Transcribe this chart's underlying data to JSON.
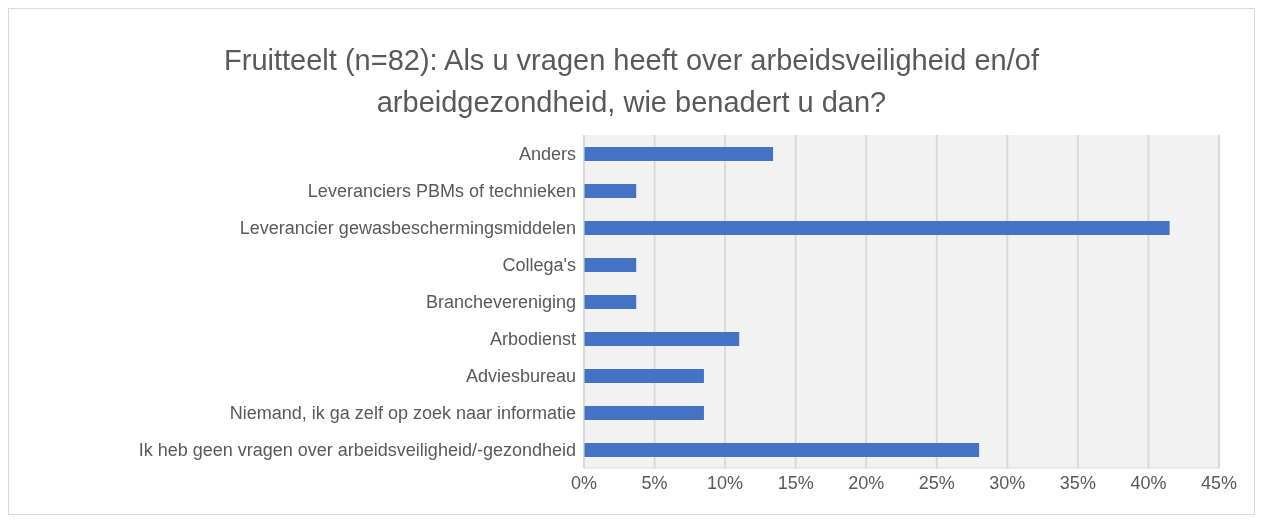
{
  "chart_data": {
    "type": "bar",
    "orientation": "horizontal",
    "title": "Fruitteelt (n=82): Als u vragen heeft over arbeidsveiligheid en/of arbeidgezondheid, wie benadert u dan?",
    "categories": [
      "Anders",
      "Leveranciers PBMs of technieken",
      "Leverancier gewasbeschermingsmiddelen",
      "Collega's",
      "Branchevereniging",
      "Arbodienst",
      "Adviesbureau",
      "Niemand, ik ga zelf op zoek naar informatie",
      "Ik heb geen vragen over arbeidsveiligheid/-gezondheid"
    ],
    "values": [
      13.4,
      3.7,
      41.5,
      3.7,
      3.7,
      11,
      8.5,
      8.5,
      28
    ],
    "color": "#4472c4",
    "xlim": [
      0,
      45
    ],
    "xticks": [
      {
        "value": 0,
        "label": "0%"
      },
      {
        "value": 5,
        "label": "5%"
      },
      {
        "value": 10,
        "label": "10%"
      },
      {
        "value": 15,
        "label": "15%"
      },
      {
        "value": 20,
        "label": "20%"
      },
      {
        "value": 25,
        "label": "25%"
      },
      {
        "value": 30,
        "label": "30%"
      },
      {
        "value": 35,
        "label": "35%"
      },
      {
        "value": 40,
        "label": "40%"
      },
      {
        "value": 45,
        "label": "45%"
      }
    ],
    "grid": "x",
    "legend": false
  }
}
